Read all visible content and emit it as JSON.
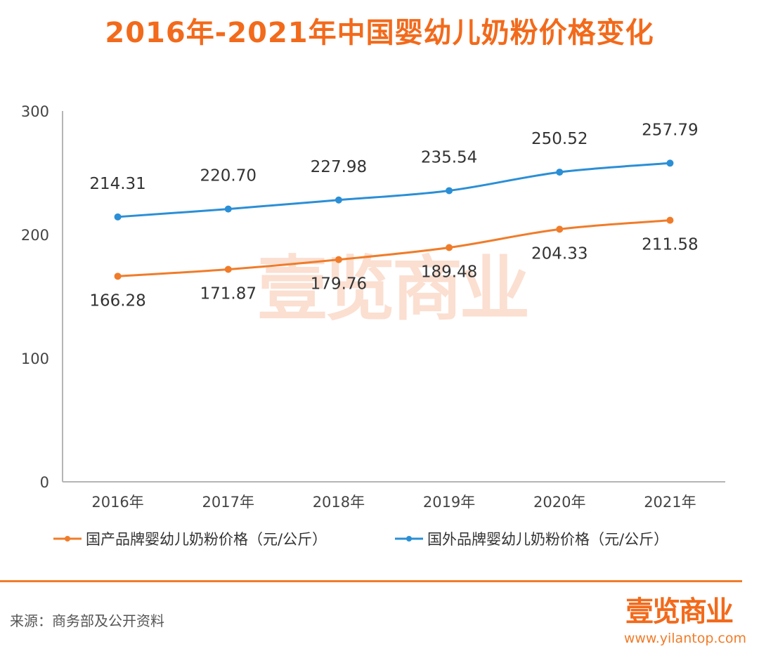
{
  "title": "2016年-2021年中国婴幼儿奶粉价格变化",
  "chart_data": {
    "type": "line",
    "categories": [
      "2016年",
      "2017年",
      "2018年",
      "2019年",
      "2020年",
      "2021年"
    ],
    "ylim": [
      0,
      300
    ],
    "yticks": [
      0,
      100,
      200,
      300
    ],
    "series": [
      {
        "name": "国产品牌婴幼儿奶粉价格（元/公斤）",
        "color": "#f07c2a",
        "values": [
          166.28,
          171.87,
          179.76,
          189.48,
          204.33,
          211.58
        ],
        "labels": [
          "166.28",
          "171.87",
          "179.76",
          "189.48",
          "204.33",
          "211.58"
        ],
        "label_position": "below"
      },
      {
        "name": "国外品牌婴幼儿奶粉价格（元/公斤）",
        "color": "#2b8fd6",
        "values": [
          214.31,
          220.7,
          227.98,
          235.54,
          250.52,
          257.79
        ],
        "labels": [
          "214.31",
          "220.70",
          "227.98",
          "235.54",
          "250.52",
          "257.79"
        ],
        "label_position": "above"
      }
    ],
    "legend_position": "bottom",
    "grid": false
  },
  "watermark": "壹览商业",
  "source": "来源：商务部及公开资料",
  "brand": {
    "logo_text": "壹览商业",
    "url": "www.yilantop.com"
  }
}
